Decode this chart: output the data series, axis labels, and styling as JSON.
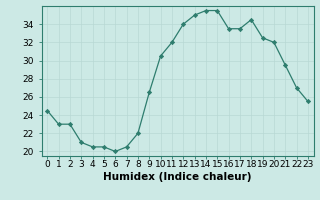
{
  "x": [
    0,
    1,
    2,
    3,
    4,
    5,
    6,
    7,
    8,
    9,
    10,
    11,
    12,
    13,
    14,
    15,
    16,
    17,
    18,
    19,
    20,
    21,
    22,
    23
  ],
  "y": [
    24.5,
    23.0,
    23.0,
    21.0,
    20.5,
    20.5,
    20.0,
    20.5,
    22.0,
    26.5,
    30.5,
    32.0,
    34.0,
    35.0,
    35.5,
    35.5,
    33.5,
    33.5,
    34.5,
    32.5,
    32.0,
    29.5,
    27.0,
    25.5
  ],
  "xlabel": "Humidex (Indice chaleur)",
  "xlim": [
    -0.5,
    23.5
  ],
  "ylim": [
    19.5,
    36.0
  ],
  "yticks": [
    20,
    22,
    24,
    26,
    28,
    30,
    32,
    34
  ],
  "line_color": "#2e7d6e",
  "marker": "D",
  "marker_size": 2.2,
  "bg_color": "#cce9e5",
  "grid_color": "#b8d8d4",
  "label_fontsize": 7.5,
  "tick_fontsize": 6.5
}
